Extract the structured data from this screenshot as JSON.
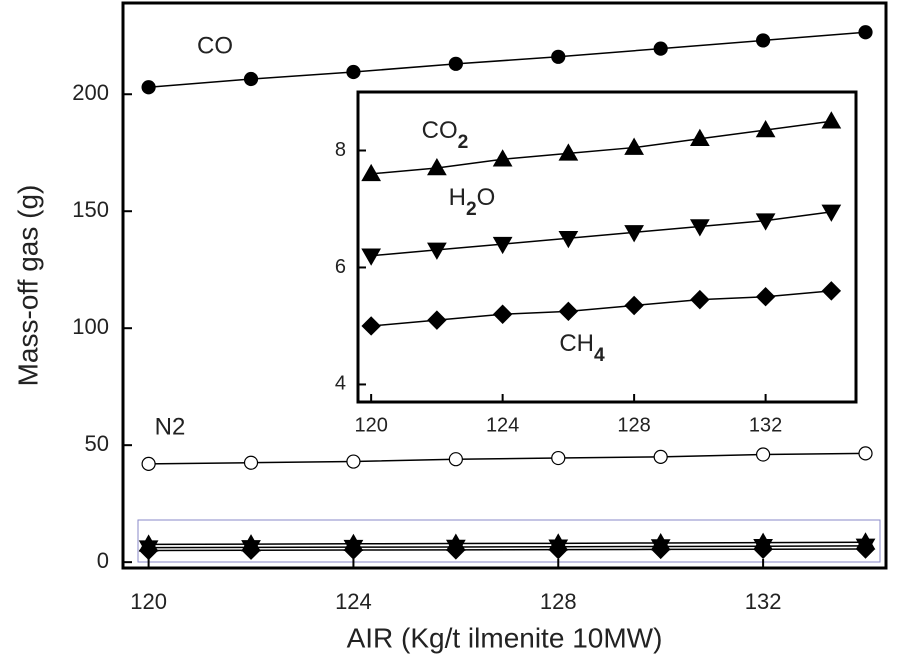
{
  "chart_data": [
    {
      "type": "line",
      "x_label": "AIR (Kg/t ilmenite 10MW)",
      "y_label": "Mass-off gas (g)",
      "x": [
        120,
        122,
        124,
        126,
        128,
        130,
        132,
        134
      ],
      "xlim": [
        119.5,
        134.4
      ],
      "xticks": [
        120,
        124,
        128,
        132
      ],
      "ylim": [
        -2.5,
        239
      ],
      "yticks": [
        0,
        50,
        100,
        150,
        200
      ],
      "series": [
        {
          "name": "CO",
          "color": "#000000",
          "marker": "circle",
          "filled": true,
          "values": [
            203,
            206.5,
            209.5,
            213,
            216,
            219.5,
            223,
            226.5
          ]
        },
        {
          "name": "N2",
          "color": "#000000",
          "marker": "circle",
          "filled": false,
          "values": [
            42,
            42.5,
            43,
            44,
            44.5,
            45,
            46,
            46.5
          ]
        },
        {
          "color": "#000000",
          "marker": "triangle-up",
          "filled": true,
          "values": [
            7.6,
            7.7,
            7.85,
            7.95,
            8.05,
            8.2,
            8.35,
            8.5
          ]
        },
        {
          "color": "#000000",
          "marker": "triangle-down",
          "filled": true,
          "values": [
            6.2,
            6.3,
            6.4,
            6.5,
            6.6,
            6.7,
            6.8,
            6.95
          ]
        },
        {
          "color": "#000000",
          "marker": "diamond",
          "filled": true,
          "values": [
            5.0,
            5.1,
            5.2,
            5.25,
            5.35,
            5.45,
            5.5,
            5.6
          ]
        }
      ]
    },
    {
      "type": "line",
      "x": [
        120,
        122,
        124,
        126,
        128,
        130,
        132,
        134
      ],
      "xlim": [
        119.6,
        134.75
      ],
      "xticks": [
        120,
        124,
        128,
        132
      ],
      "ylim": [
        3.7,
        9.0
      ],
      "yticks": [
        4,
        6,
        8
      ],
      "series": [
        {
          "name": "CO2",
          "color": "#000000",
          "marker": "triangle-up",
          "filled": true,
          "values": [
            7.6,
            7.7,
            7.85,
            7.95,
            8.05,
            8.2,
            8.35,
            8.5
          ]
        },
        {
          "name": "H2O",
          "color": "#000000",
          "marker": "triangle-down",
          "filled": true,
          "values": [
            6.2,
            6.3,
            6.4,
            6.5,
            6.6,
            6.7,
            6.8,
            6.95
          ]
        },
        {
          "name": "CH4",
          "color": "#000000",
          "marker": "diamond",
          "filled": true,
          "values": [
            5.0,
            5.1,
            5.2,
            5.25,
            5.35,
            5.45,
            5.5,
            5.6
          ]
        }
      ]
    }
  ]
}
